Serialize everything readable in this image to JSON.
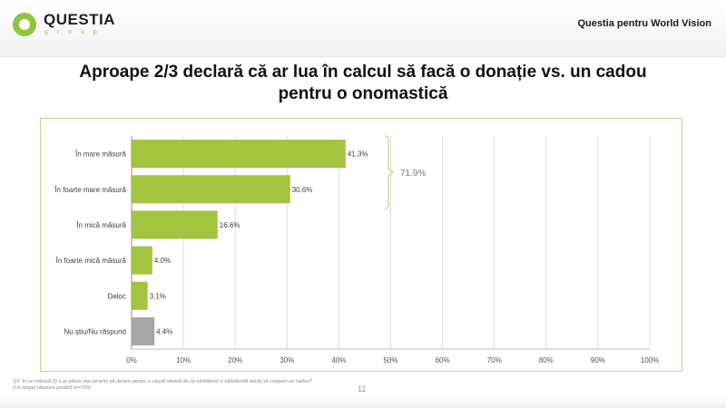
{
  "header": {
    "logo_text": "QUESTIA",
    "logo_sub": "g r o u p",
    "client_label": "Questia pentru World Vision"
  },
  "title": "Aproape 2/3 declară că ar lua în calcul să facă o donație vs. un cadou pentru o onomastică",
  "footnote": "Q3. În ce măsură (î) s-ar părea mai atractiv să donezi pentru o cauză aleasă de un sărbătorit/ o sărbătorită decât să cumperi un cadou? (Un singur răspuns posibil) (n=700)",
  "page_number": "11",
  "colors": {
    "bar": "#a3c43e",
    "bar_na": "#a6a6a6",
    "bracket": "#c9dfa0",
    "grid": "#dcdcdc",
    "axis_text": "#555555"
  },
  "chart_data": {
    "type": "bar",
    "orientation": "horizontal",
    "categories": [
      "În mare măsură",
      "În foarte mare măsură",
      "În mică măsură",
      "În foarte mică măsură",
      "Deloc",
      "Nu știu/Nu răspund"
    ],
    "values": [
      41.3,
      30.6,
      16.6,
      4.0,
      3.1,
      4.4
    ],
    "value_labels": [
      "41.3%",
      "30.6%",
      "16.6%",
      "4.0%",
      "3.1%",
      "4.4%"
    ],
    "xlim": [
      0,
      100
    ],
    "x_ticks": [
      "0%",
      "10%",
      "20%",
      "30%",
      "40%",
      "50%",
      "60%",
      "70%",
      "80%",
      "90%",
      "100%"
    ],
    "grid": true,
    "bracket_annotation": "71.9%"
  }
}
